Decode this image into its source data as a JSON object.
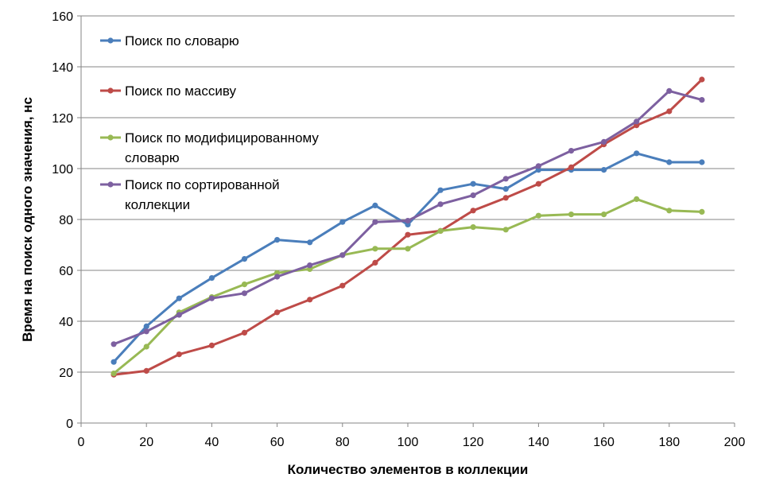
{
  "chart_data": {
    "type": "line",
    "title": "",
    "xlabel": "Количество элементов в коллекции",
    "ylabel": "Время на поиск одного значения, нс",
    "xlim": [
      0,
      200
    ],
    "ylim": [
      0,
      160
    ],
    "x_ticks": [
      "0",
      "20",
      "40",
      "60",
      "80",
      "100",
      "120",
      "140",
      "160",
      "180",
      "200"
    ],
    "y_ticks": [
      "0",
      "20",
      "40",
      "60",
      "80",
      "100",
      "120",
      "140",
      "160"
    ],
    "grid": "horizontal",
    "legend_position": "top-left",
    "x": [
      10,
      20,
      30,
      40,
      50,
      60,
      70,
      80,
      90,
      100,
      110,
      120,
      130,
      140,
      150,
      160,
      170,
      180,
      190
    ],
    "series": [
      {
        "name": "Поиск по словарю",
        "name_lines": [
          "Поиск по словарю"
        ],
        "color": "#4a7ebb",
        "values": [
          24,
          38,
          49,
          57,
          64.5,
          72,
          71,
          79,
          85.5,
          78,
          91.5,
          94,
          92,
          99.5,
          99.5,
          99.5,
          106,
          102.5,
          102.5
        ]
      },
      {
        "name": "Поиск по массиву",
        "name_lines": [
          "Поиск по массиву"
        ],
        "color": "#be4b48",
        "values": [
          19,
          20.5,
          27,
          30.5,
          35.5,
          43.5,
          48.5,
          54,
          63,
          74,
          75.5,
          83.5,
          88.5,
          94,
          100.5,
          109.5,
          117,
          122.5,
          135
        ]
      },
      {
        "name": "Поиск по модифицированному словарю",
        "name_lines": [
          "Поиск по модифицированному",
          "словарю"
        ],
        "color": "#98b954",
        "values": [
          19.5,
          30,
          43.5,
          49.5,
          54.5,
          59,
          60.5,
          66,
          68.5,
          68.5,
          75.5,
          77,
          76,
          81.5,
          82,
          82,
          88,
          83.5,
          83
        ]
      },
      {
        "name": "Поиск по сортированной коллекции",
        "name_lines": [
          "Поиск по сортированной",
          "коллекции"
        ],
        "color": "#7d60a0",
        "values": [
          31,
          36,
          42.5,
          49,
          51,
          57.5,
          62,
          66,
          79,
          79.5,
          86,
          89.5,
          96,
          101,
          107,
          110.5,
          118.5,
          130.5,
          127
        ]
      }
    ]
  }
}
